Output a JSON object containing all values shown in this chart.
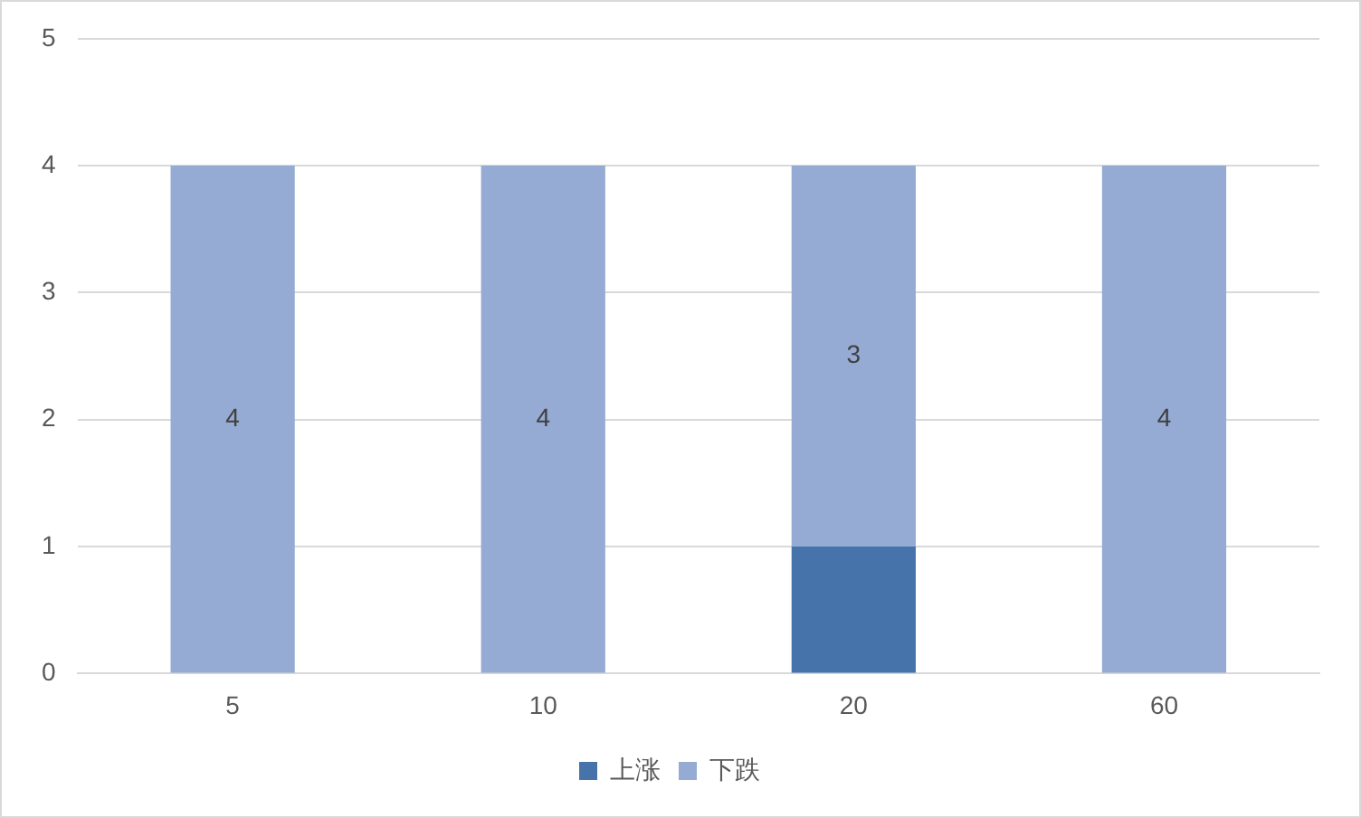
{
  "chart_data": {
    "type": "bar",
    "stacked": true,
    "categories": [
      "5",
      "10",
      "20",
      "60"
    ],
    "series": [
      {
        "name": "上涨",
        "color": "#4674aa",
        "values": [
          0,
          0,
          1,
          0
        ]
      },
      {
        "name": "下跌",
        "color": "#95abd3",
        "values": [
          4,
          4,
          3,
          4
        ],
        "value_labels": [
          "4",
          "4",
          "3",
          "4"
        ]
      }
    ],
    "ylim": [
      0,
      5
    ],
    "yticks": [
      0,
      1,
      2,
      3,
      4,
      5
    ],
    "grid": "y",
    "legend": "bottom"
  }
}
